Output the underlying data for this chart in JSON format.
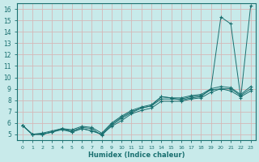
{
  "xlabel": "Humidex (Indice chaleur)",
  "ylabel": "",
  "bg_color": "#c8eaea",
  "grid_color": "#d4b8b8",
  "line_color": "#1a7070",
  "xlim": [
    -0.5,
    23.5
  ],
  "ylim": [
    4.5,
    16.5
  ],
  "xticks": [
    0,
    1,
    2,
    3,
    4,
    5,
    6,
    7,
    8,
    9,
    10,
    11,
    12,
    13,
    14,
    15,
    16,
    17,
    18,
    19,
    20,
    21,
    22,
    23
  ],
  "yticks": [
    5,
    6,
    7,
    8,
    9,
    10,
    11,
    12,
    13,
    14,
    15,
    16
  ],
  "series": [
    [
      5.8,
      5.0,
      5.0,
      5.2,
      5.4,
      5.2,
      5.5,
      5.3,
      5.0,
      5.9,
      6.5,
      7.0,
      7.3,
      7.5,
      8.3,
      8.2,
      8.0,
      8.2,
      8.3,
      9.0,
      15.3,
      14.7,
      8.2,
      16.3
    ],
    [
      5.8,
      5.0,
      5.0,
      5.2,
      5.5,
      5.2,
      5.5,
      5.3,
      5.0,
      5.7,
      6.2,
      6.8,
      7.1,
      7.3,
      7.9,
      7.9,
      7.9,
      8.1,
      8.2,
      8.7,
      9.0,
      8.8,
      8.3,
      8.8
    ],
    [
      5.8,
      5.0,
      5.0,
      5.2,
      5.5,
      5.3,
      5.6,
      5.5,
      4.9,
      5.8,
      6.4,
      6.9,
      7.3,
      7.5,
      8.1,
      8.1,
      8.1,
      8.3,
      8.4,
      8.9,
      9.0,
      9.0,
      8.4,
      9.0
    ],
    [
      5.8,
      5.0,
      5.1,
      5.3,
      5.5,
      5.4,
      5.7,
      5.6,
      5.1,
      6.0,
      6.6,
      7.1,
      7.4,
      7.6,
      8.3,
      8.2,
      8.2,
      8.4,
      8.5,
      9.0,
      9.2,
      9.1,
      8.5,
      9.2
    ]
  ]
}
